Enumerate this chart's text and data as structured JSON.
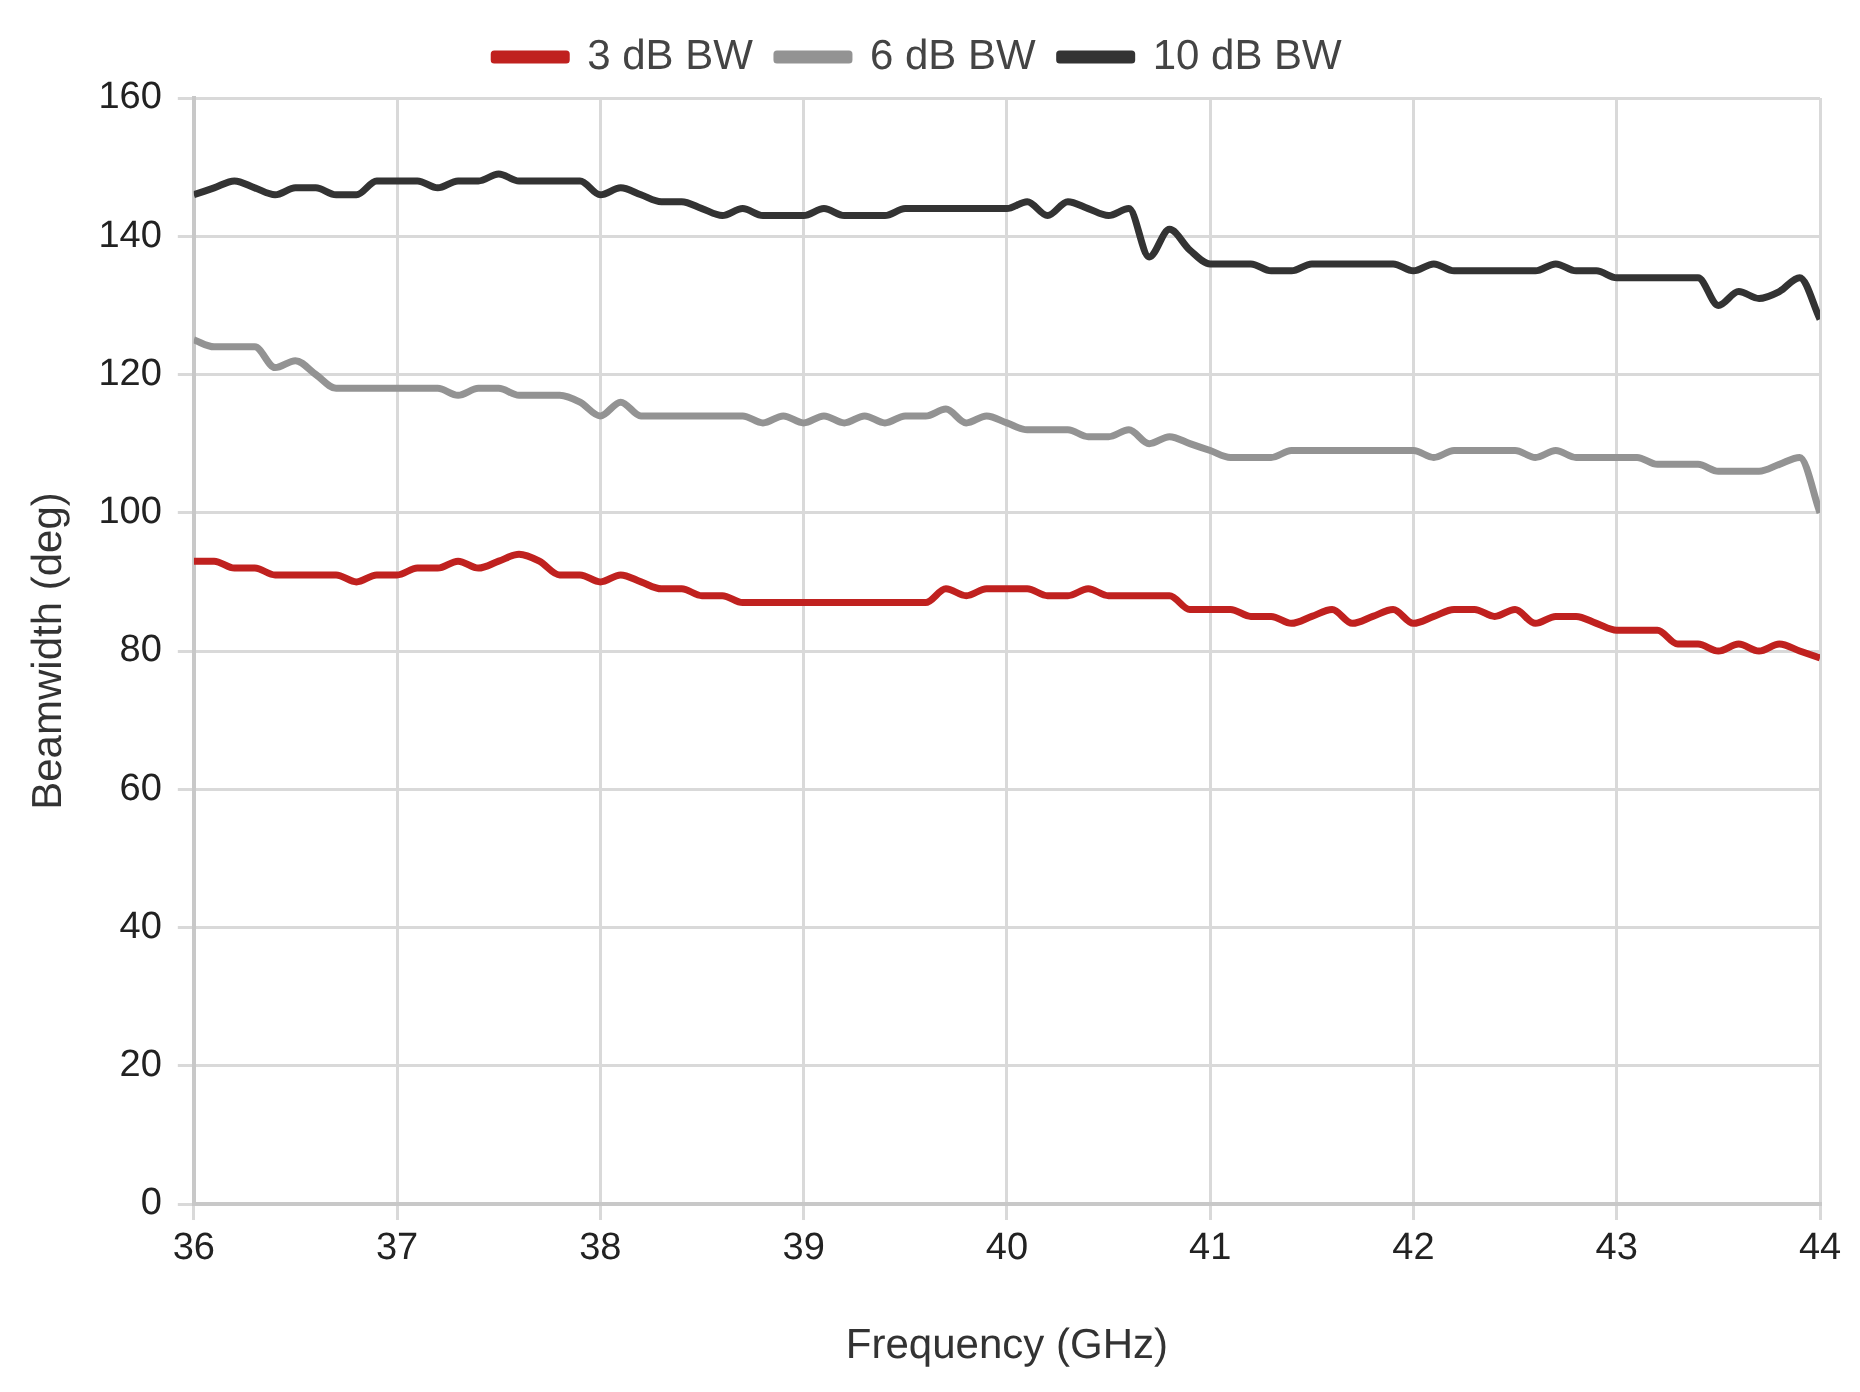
{
  "chart_data": {
    "type": "line",
    "xlabel": "Frequency (GHz)",
    "ylabel": "Beamwidth (deg)",
    "x": [
      36,
      36.1,
      36.2,
      36.3,
      36.4,
      36.5,
      36.6,
      36.7,
      36.8,
      36.9,
      37,
      37.1,
      37.2,
      37.3,
      37.4,
      37.5,
      37.6,
      37.7,
      37.8,
      37.9,
      38,
      38.1,
      38.2,
      38.3,
      38.4,
      38.5,
      38.6,
      38.7,
      38.8,
      38.9,
      39,
      39.1,
      39.2,
      39.3,
      39.4,
      39.5,
      39.6,
      39.7,
      39.8,
      39.9,
      40,
      40.1,
      40.2,
      40.3,
      40.4,
      40.5,
      40.6,
      40.7,
      40.8,
      40.9,
      41,
      41.1,
      41.2,
      41.3,
      41.4,
      41.5,
      41.6,
      41.7,
      41.8,
      41.9,
      42,
      42.1,
      42.2,
      42.3,
      42.4,
      42.5,
      42.6,
      42.7,
      42.8,
      42.9,
      43,
      43.1,
      43.2,
      43.3,
      43.4,
      43.5,
      43.6,
      43.7,
      43.8,
      43.9,
      44
    ],
    "series": [
      {
        "name": "3 dB BW",
        "color": "#c0211f",
        "values": [
          93,
          93,
          92,
          92,
          91,
          91,
          91,
          91,
          90,
          91,
          91,
          92,
          92,
          93,
          92,
          93,
          94,
          93,
          91,
          91,
          90,
          91,
          90,
          89,
          89,
          88,
          88,
          87,
          87,
          87,
          87,
          87,
          87,
          87,
          87,
          87,
          87,
          89,
          88,
          89,
          89,
          89,
          88,
          88,
          89,
          88,
          88,
          88,
          88,
          86,
          86,
          86,
          85,
          85,
          84,
          85,
          86,
          84,
          85,
          86,
          84,
          85,
          86,
          86,
          85,
          86,
          84,
          85,
          85,
          84,
          83,
          83,
          83,
          81,
          81,
          80,
          81,
          80,
          81,
          80,
          79
        ]
      },
      {
        "name": "6 dB BW",
        "color": "#939393",
        "values": [
          125,
          124,
          124,
          124,
          121,
          122,
          120,
          118,
          118,
          118,
          118,
          118,
          118,
          117,
          118,
          118,
          117,
          117,
          117,
          116,
          114,
          116,
          114,
          114,
          114,
          114,
          114,
          114,
          113,
          114,
          113,
          114,
          113,
          114,
          113,
          114,
          114,
          115,
          113,
          114,
          113,
          112,
          112,
          112,
          111,
          111,
          112,
          110,
          111,
          110,
          109,
          108,
          108,
          108,
          109,
          109,
          109,
          109,
          109,
          109,
          109,
          108,
          109,
          109,
          109,
          109,
          108,
          109,
          108,
          108,
          108,
          108,
          107,
          107,
          107,
          106,
          106,
          106,
          107,
          108,
          100
        ]
      },
      {
        "name": "10 dB BW",
        "color": "#333333",
        "values": [
          146,
          147,
          148,
          147,
          146,
          147,
          147,
          146,
          146,
          148,
          148,
          148,
          147,
          148,
          148,
          149,
          148,
          148,
          148,
          148,
          146,
          147,
          146,
          145,
          145,
          144,
          143,
          144,
          143,
          143,
          143,
          144,
          143,
          143,
          143,
          144,
          144,
          144,
          144,
          144,
          144,
          145,
          143,
          145,
          144,
          143,
          144,
          137,
          141,
          138,
          136,
          136,
          136,
          135,
          135,
          136,
          136,
          136,
          136,
          136,
          135,
          136,
          135,
          135,
          135,
          135,
          135,
          136,
          135,
          135,
          134,
          134,
          134,
          134,
          134,
          130,
          132,
          131,
          132,
          134,
          128
        ]
      }
    ],
    "xlim": [
      36,
      44
    ],
    "xticks": [
      36,
      37,
      38,
      39,
      40,
      41,
      42,
      43,
      44
    ],
    "ylim": [
      0,
      160
    ],
    "yticks": [
      0,
      20,
      40,
      60,
      80,
      100,
      120,
      140,
      160
    ],
    "grid": true,
    "legend": "top",
    "marker": "none",
    "line_style": "solid"
  }
}
